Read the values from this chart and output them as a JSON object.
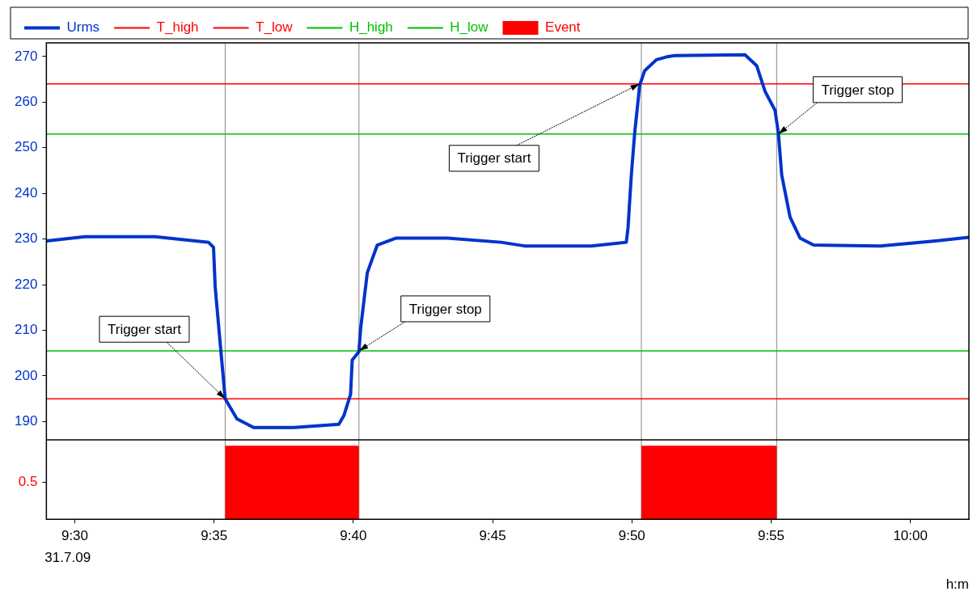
{
  "chart_data": {
    "type": "line",
    "xlabel": "h:m",
    "annotations": [
      "31.7.09",
      {
        "text": "Trigger start",
        "x": 9.59,
        "y": 195
      },
      {
        "text": "Trigger stop",
        "x": 9.67,
        "y": 205.5
      },
      {
        "text": "Trigger start",
        "x": 9.838,
        "y": 264
      },
      {
        "text": "Trigger stop",
        "x": 9.921,
        "y": 253
      }
    ],
    "xlim": [
      9.483,
      10.035
    ],
    "xticks": [
      {
        "value": 9.5,
        "label": "9:30"
      },
      {
        "value": 9.58333,
        "label": "9:35"
      },
      {
        "value": 9.66667,
        "label": "9:40"
      },
      {
        "value": 9.75,
        "label": "9:45"
      },
      {
        "value": 9.83333,
        "label": "9:50"
      },
      {
        "value": 9.91667,
        "label": "9:55"
      },
      {
        "value": 10,
        "label": "10:00"
      }
    ],
    "ylim": [
      168.6,
      273
    ],
    "yticks": [
      190,
      200,
      210,
      220,
      230,
      240,
      250,
      260,
      270
    ],
    "y2lim": [
      0,
      6.48
    ],
    "y2ticks": [
      0.5
    ],
    "series": [
      {
        "name": "Urms",
        "type": "line",
        "color": "#0033cc",
        "x": [
          9.483,
          9.506,
          9.548,
          9.58,
          9.583,
          9.584,
          9.587,
          9.59,
          9.597,
          9.607,
          9.631,
          9.658,
          9.661,
          9.665,
          9.666,
          9.67,
          9.671,
          9.675,
          9.681,
          9.692,
          9.723,
          9.755,
          9.769,
          9.809,
          9.83,
          9.831,
          9.833,
          9.835,
          9.838,
          9.841,
          9.848,
          9.855,
          9.859,
          9.901,
          9.908,
          9.913,
          9.919,
          9.921,
          9.923,
          9.928,
          9.934,
          9.942,
          9.982,
          10.015,
          10.035
        ],
        "values": [
          229.6,
          230.5,
          230.5,
          229.3,
          228.2,
          219.5,
          207.1,
          195,
          190.6,
          188.7,
          188.7,
          189.4,
          191.3,
          196,
          203.5,
          205.3,
          210.3,
          222.6,
          228.7,
          230.2,
          230.2,
          229.3,
          228.5,
          228.5,
          229.3,
          232.4,
          244,
          253.2,
          263.7,
          266.9,
          269.3,
          270,
          270.2,
          270.4,
          268,
          262.4,
          258.2,
          253.2,
          244,
          234.8,
          230.2,
          228.7,
          228.5,
          229.6,
          230.4
        ]
      },
      {
        "name": "Event",
        "type": "area",
        "axis": "y2",
        "color": "#ff0000",
        "x": [
          9.483,
          9.59,
          9.59,
          9.67,
          9.67,
          9.839,
          9.839,
          9.92,
          9.92,
          10.035
        ],
        "values": [
          0,
          0,
          1,
          1,
          0,
          0,
          1,
          1,
          0,
          0
        ]
      }
    ],
    "ref_lines": [
      {
        "axis": "y",
        "value": 264,
        "label": "T_high",
        "color": "#ff0000"
      },
      {
        "axis": "y",
        "value": 195,
        "label": "T_low",
        "color": "#ff0000"
      },
      {
        "axis": "y",
        "value": 253,
        "label": "H_high",
        "color": "#00c000"
      },
      {
        "axis": "y",
        "value": 205.5,
        "label": "H_low",
        "color": "#00c000"
      },
      {
        "axis": "y",
        "value": 186,
        "color": "#000000"
      },
      {
        "axis": "x",
        "value": 9.59,
        "color": "#999999"
      },
      {
        "axis": "x",
        "value": 9.67,
        "color": "#999999"
      },
      {
        "axis": "x",
        "value": 9.839,
        "color": "#999999"
      },
      {
        "axis": "x",
        "value": 9.92,
        "color": "#999999"
      }
    ],
    "legend": "top",
    "grid": false
  }
}
